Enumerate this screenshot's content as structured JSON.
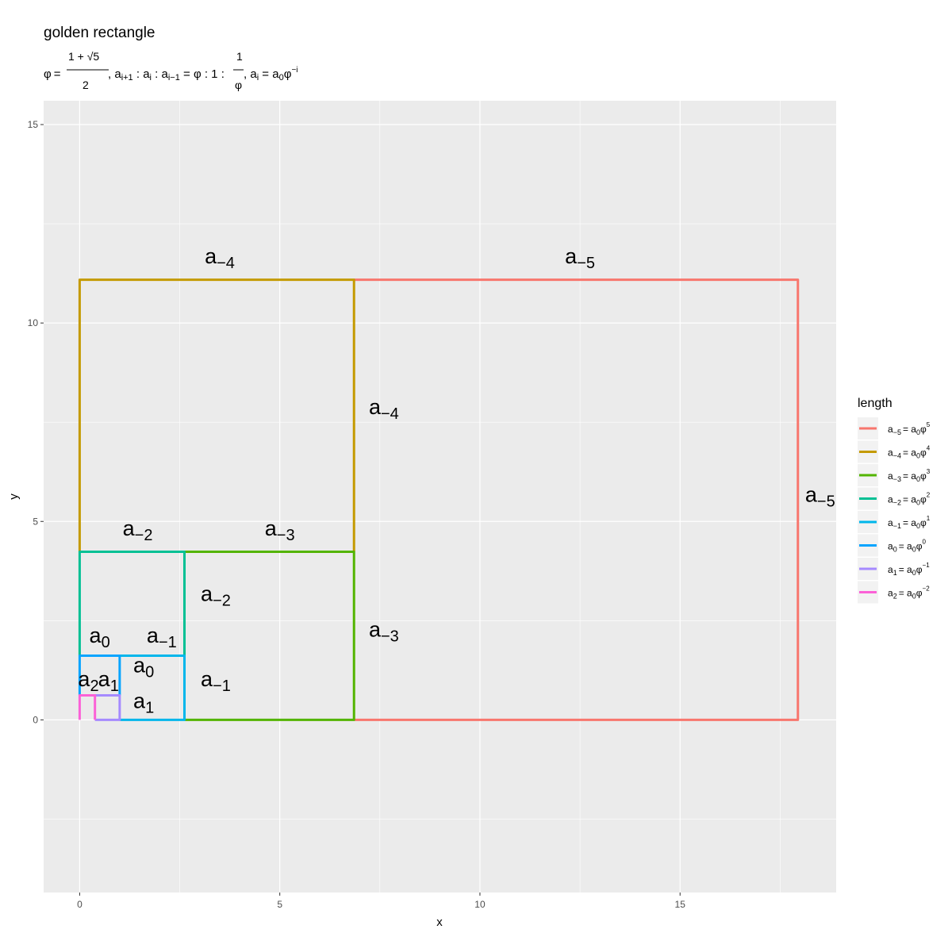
{
  "chart_data": {
    "type": "line",
    "title": "golden rectangle",
    "subtitle": {
      "phi": "φ",
      "eq": "=",
      "numerator": "1 + √5",
      "denominator": "2",
      "ratio_text": ", a",
      "ratio_sub1": "i+1",
      "ratio_mid": " : a",
      "ratio_sub2": "i",
      "ratio_mid2": " : a",
      "ratio_sub3": "i−1",
      "ratio_rhs": " = φ : 1 : ",
      "frac2_num": "1",
      "frac2_den": "φ",
      "ai_text": ", a",
      "ai_sub": "i",
      "ai_eq": " = a",
      "ai_sub0": "0",
      "ai_phi": "φ",
      "ai_sup": "−i"
    },
    "xlabel": "x",
    "ylabel": "y",
    "xlim": [
      -0.9,
      18.9
    ],
    "ylim": [
      -4.35,
      15.6
    ],
    "x_ticks": [
      0,
      5,
      10,
      15
    ],
    "y_ticks": [
      0,
      5,
      10,
      15
    ],
    "x_tick_labels": [
      "0",
      "5",
      "10",
      "15"
    ],
    "y_tick_labels": [
      "0",
      "5",
      "10",
      "15"
    ],
    "x_minor": [
      2.5,
      7.5,
      12.5,
      17.5
    ],
    "y_minor": [
      -2.5,
      2.5,
      7.5,
      12.5
    ],
    "grid": true,
    "legend": {
      "title": "length",
      "placement": "right",
      "entries": [
        {
          "color": "#F8766D",
          "label": "a",
          "sub": "−5",
          "rhs": "= a",
          "rhs_sub": "0",
          "phi": "φ",
          "sup": "5"
        },
        {
          "color": "#C49A00",
          "label": "a",
          "sub": "−4",
          "rhs": "= a",
          "rhs_sub": "0",
          "phi": "φ",
          "sup": "4"
        },
        {
          "color": "#53B400",
          "label": "a",
          "sub": "−3",
          "rhs": "= a",
          "rhs_sub": "0",
          "phi": "φ",
          "sup": "3"
        },
        {
          "color": "#00C094",
          "label": "a",
          "sub": "−2",
          "rhs": "= a",
          "rhs_sub": "0",
          "phi": "φ",
          "sup": "2"
        },
        {
          "color": "#00B6EB",
          "label": "a",
          "sub": "−1",
          "rhs": "= a",
          "rhs_sub": "0",
          "phi": "φ",
          "sup": "1"
        },
        {
          "color": "#06A4FF",
          "label": "a",
          "sub": "0",
          "rhs": "= a",
          "rhs_sub": "0",
          "phi": "φ",
          "sup": "0"
        },
        {
          "color": "#A58AFF",
          "label": "a",
          "sub": "1",
          "rhs": "= a",
          "rhs_sub": "0",
          "phi": "φ",
          "sup": "−1"
        },
        {
          "color": "#FB61D7",
          "label": "a",
          "sub": "2",
          "rhs": "= a",
          "rhs_sub": "0",
          "phi": "φ",
          "sup": "−2"
        }
      ]
    },
    "series": [
      {
        "color": "#F8766D",
        "x": [
          6.854,
          17.944,
          17.944,
          6.854
        ],
        "y": [
          0,
          0,
          11.09,
          11.09
        ]
      },
      {
        "color": "#C49A00",
        "x": [
          6.854,
          6.854,
          0,
          0
        ],
        "y": [
          4.236,
          11.09,
          11.09,
          4.236
        ]
      },
      {
        "color": "#53B400",
        "x": [
          2.618,
          6.854,
          6.854,
          2.618
        ],
        "y": [
          0,
          0,
          4.236,
          4.236
        ]
      },
      {
        "color": "#00C094",
        "x": [
          2.618,
          2.618,
          0,
          0
        ],
        "y": [
          1.618,
          4.236,
          4.236,
          1.618
        ]
      },
      {
        "color": "#00B6EB",
        "x": [
          1.0,
          2.618,
          2.618,
          1.0
        ],
        "y": [
          0,
          0,
          1.618,
          1.618
        ]
      },
      {
        "color": "#06A4FF",
        "x": [
          1.0,
          1.0,
          0,
          0
        ],
        "y": [
          0.618,
          1.618,
          1.618,
          0.618
        ]
      },
      {
        "color": "#A58AFF",
        "x": [
          0.382,
          1.0,
          1.0,
          0.382
        ],
        "y": [
          0,
          0,
          0.618,
          0.618
        ]
      },
      {
        "color": "#FB61D7",
        "x": [
          0.382,
          0.382,
          0,
          0
        ],
        "y": [
          0,
          0.618,
          0.618,
          0
        ]
      }
    ],
    "annotations": [
      {
        "text": "a",
        "sub": "−5",
        "x": 12.5,
        "y": 11.5
      },
      {
        "text": "a",
        "sub": "−5",
        "x": 18.5,
        "y": 5.5
      },
      {
        "text": "a",
        "sub": "−4",
        "x": 3.5,
        "y": 11.5
      },
      {
        "text": "a",
        "sub": "−4",
        "x": 7.6,
        "y": 7.7
      },
      {
        "text": "a",
        "sub": "−3",
        "x": 5.0,
        "y": 4.65
      },
      {
        "text": "a",
        "sub": "−3",
        "x": 7.6,
        "y": 2.1
      },
      {
        "text": "a",
        "sub": "−2",
        "x": 1.45,
        "y": 4.65
      },
      {
        "text": "a",
        "sub": "−2",
        "x": 3.4,
        "y": 3.0
      },
      {
        "text": "a",
        "sub": "−1",
        "x": 2.05,
        "y": 1.95
      },
      {
        "text": "a",
        "sub": "−1",
        "x": 3.4,
        "y": 0.85
      },
      {
        "text": "a",
        "sub": "0",
        "x": 0.5,
        "y": 1.95
      },
      {
        "text": "a",
        "sub": "0",
        "x": 1.6,
        "y": 1.2
      },
      {
        "text": "a",
        "sub": "1",
        "x": 0.72,
        "y": 0.85
      },
      {
        "text": "a",
        "sub": "1",
        "x": 1.6,
        "y": 0.3
      },
      {
        "text": "a",
        "sub": "2",
        "x": 0.22,
        "y": 0.85
      }
    ]
  }
}
